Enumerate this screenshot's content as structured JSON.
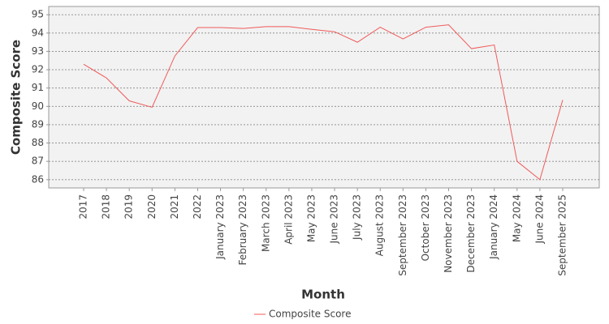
{
  "chart_data": {
    "type": "line",
    "title_y": "Composite Score",
    "title_x": "Month",
    "categories": [
      "2017",
      "2018",
      "2019",
      "2020",
      "2021",
      "2022",
      "January 2023",
      "February 2023",
      "March 2023",
      "April 2023",
      "May 2023",
      "June 2023",
      "July 2023",
      "August 2023",
      "September 2023",
      "October 2023",
      "November 2023",
      "December 2023",
      "January 2024",
      "May 2024",
      "June 2024",
      "September 2025"
    ],
    "series": [
      {
        "name": "Composite Score",
        "color": "#f05a5a",
        "values": [
          92.3,
          91.55,
          90.3,
          89.95,
          92.75,
          94.3,
          94.3,
          94.25,
          94.35,
          94.35,
          94.2,
          94.07,
          93.5,
          94.32,
          93.68,
          94.32,
          94.45,
          93.15,
          93.35,
          87.0,
          86.0,
          90.35
        ]
      }
    ],
    "ylim": [
      85.55,
      95.45
    ],
    "yticks": [
      86,
      87,
      88,
      89,
      90,
      91,
      92,
      93,
      94,
      95
    ],
    "grid": true,
    "legend_position": "bottom"
  }
}
